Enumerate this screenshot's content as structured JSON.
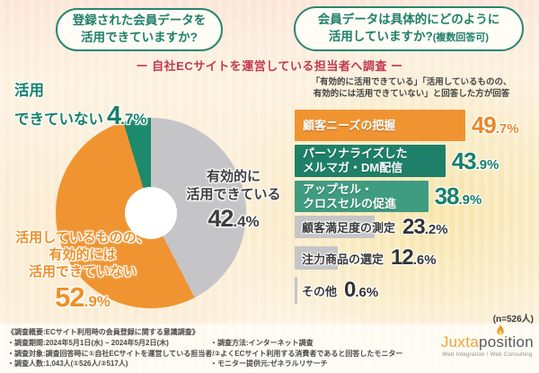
{
  "header": {
    "bubble_left_line1": "登録された会員データを",
    "bubble_left_line2": "活用できていますか?",
    "bubble_right_line1": "会員データは具体的にどのように",
    "bubble_right_line2": "活用していますか?",
    "bubble_right_note": "(複数回答可)",
    "center_note": "ー 自社ECサイトを運営している担当者へ調査 ー"
  },
  "pie_labels": {
    "not_used_line1": "活用",
    "not_used_line2": "できていない",
    "not_used_val_main": "4",
    "not_used_val_sub": ".7%",
    "effective_line1": "有効的に",
    "effective_line2": "活用できている",
    "effective_val_main": "42",
    "effective_val_sub": ".4%",
    "noteff_line1": "活用しているものの、",
    "noteff_line2": "有効的には",
    "noteff_line3": "活用できていない",
    "noteff_val_main": "52",
    "noteff_val_sub": ".9%"
  },
  "bar_section": {
    "note_line1": "「有効的に活用できている」「活用しているものの、",
    "note_line2": "有効的には活用できていない」と回答した方が回答",
    "sample": "(n=526人)",
    "bars": [
      {
        "line1": "顧客ニーズの把握",
        "line2": "",
        "val_main": "49",
        "val_sub": ".7%"
      },
      {
        "line1": "パーソナライズした",
        "line2": "メルマガ・DM配信",
        "val_main": "43",
        "val_sub": ".9%"
      },
      {
        "line1": "アップセル・",
        "line2": "クロスセルの促進",
        "val_main": "38",
        "val_sub": ".9%"
      },
      {
        "line1": "顧客満足度の測定",
        "line2": "",
        "val_main": "23",
        "val_sub": ".2%"
      },
      {
        "line1": "注力商品の選定",
        "line2": "",
        "val_main": "12",
        "val_sub": ".6%"
      },
      {
        "line1": "その他",
        "line2": "",
        "val_main": "0",
        "val_sub": ".6%"
      }
    ]
  },
  "survey": {
    "line1": "《調査概要:ECサイト利用時の会員登録に関する意識調査》",
    "line2_left": "・調査期間:2024年5月1日(水) ~ 2024年5月2日(木)",
    "line2_right": "・調査方法:インターネット調査",
    "line3": "・調査対象:調査回答時に①自社ECサイトを運営している担当者/②よくECサイト利用する消費者であると回答したモニター",
    "line4_left": "・調査人数:1,043人(①526人/②517人)",
    "line4_right": "・モニター提供元:ゼネラルリサーチ"
  },
  "logo": {
    "brand_left": "Juxta",
    "brand_right": "position",
    "tagline": "Web Integration / Web Consulting"
  },
  "colors": {
    "orange": "#ef9431",
    "teal_dark": "#1e8069",
    "teal_mid": "#3f9c80",
    "gray": "#c5c5c7",
    "red_note": "#c23a4e",
    "bubble_teal": "#1f7f6a"
  },
  "chart_data": [
    {
      "type": "pie",
      "title": "登録された会員データを活用できていますか?",
      "labels": [
        "有効的に活用できている",
        "活用しているものの、有効的には活用できていない",
        "活用できていない"
      ],
      "values": [
        42.4,
        52.9,
        4.7
      ],
      "colors": [
        "#c5c5c7",
        "#ef9431",
        "#1d8a6d"
      ],
      "donut": true,
      "start_angle": "top",
      "direction": "clockwise"
    },
    {
      "type": "bar",
      "orientation": "horizontal",
      "title": "会員データは具体的にどのように活用していますか?(複数回答可)",
      "categories": [
        "顧客ニーズの把握",
        "パーソナライズしたメルマガ・DM配信",
        "アップセル・クロスセルの促進",
        "顧客満足度の測定",
        "注力商品の選定",
        "その他"
      ],
      "values": [
        49.7,
        43.9,
        38.9,
        23.2,
        12.6,
        0.6
      ],
      "colors": [
        "#ef9431",
        "#1e8069",
        "#3f9c80",
        "#c5c5c7",
        "#c5c5c7",
        "#c5c5c7"
      ],
      "unit": "%",
      "xlim": [
        0,
        55
      ],
      "sample_note": "(n=526人)"
    }
  ]
}
